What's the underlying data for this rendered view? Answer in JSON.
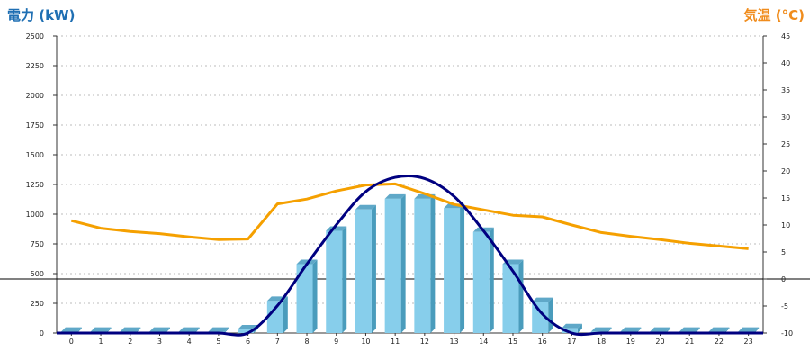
{
  "chart_data": {
    "type": "bar",
    "categories": [
      "0",
      "1",
      "2",
      "3",
      "4",
      "5",
      "6",
      "7",
      "8",
      "9",
      "10",
      "11",
      "12",
      "13",
      "14",
      "15",
      "16",
      "17",
      "18",
      "19",
      "20",
      "21",
      "22",
      "23"
    ],
    "left_axis": {
      "label": "電力 (kW)",
      "ylim": [
        0,
        2500
      ],
      "ticks": [
        "0",
        "250",
        "500",
        "750",
        "1000",
        "1250",
        "1500",
        "1750",
        "2000",
        "2250",
        "2500"
      ]
    },
    "right_axis": {
      "label": "気温 (°C)",
      "ylim": [
        -10,
        45
      ],
      "ticks": [
        "-10",
        "-5",
        "0",
        "5",
        "10",
        "15",
        "20",
        "25",
        "30",
        "35",
        "40",
        "45"
      ]
    },
    "series": [
      {
        "type": "bar",
        "axis": "left",
        "values": [
          10,
          10,
          10,
          10,
          10,
          10,
          30,
          270,
          580,
          860,
          1040,
          1130,
          1130,
          1050,
          850,
          580,
          260,
          40,
          10,
          10,
          10,
          10,
          10,
          10
        ]
      },
      {
        "type": "line",
        "axis": "left",
        "values": [
          0,
          0,
          0,
          0,
          0,
          0,
          0,
          230,
          580,
          910,
          1190,
          1310,
          1300,
          1150,
          860,
          520,
          160,
          0,
          0,
          0,
          0,
          0,
          0,
          0
        ]
      },
      {
        "type": "line",
        "axis": "right",
        "values": [
          10.8,
          9.4,
          8.8,
          8.4,
          7.8,
          7.3,
          7.4,
          13.9,
          14.8,
          16.3,
          17.4,
          17.6,
          15.8,
          13.8,
          12.8,
          11.8,
          11.5,
          10.0,
          8.6,
          7.9,
          7.3,
          6.6,
          6.1,
          5.6
        ]
      }
    ],
    "colors": {
      "bar_front": "#87ceeb",
      "bar_side": "#4a9cbc",
      "bar_top": "#5fa8c8",
      "power_line": "#000080",
      "temp_line": "#f5a000",
      "grid": "#bbbbbb",
      "left_title": "#1f6fb3",
      "right_title": "#f08c1c"
    },
    "grid": true,
    "zero_reference_line": true
  }
}
